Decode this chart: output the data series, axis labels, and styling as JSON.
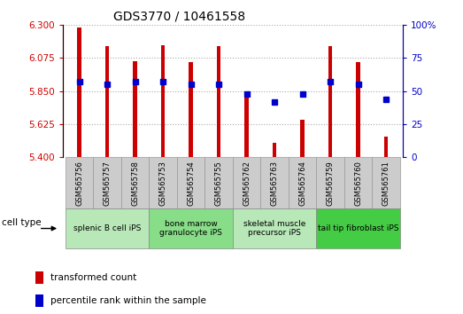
{
  "title": "GDS3770 / 10461558",
  "samples": [
    "GSM565756",
    "GSM565757",
    "GSM565758",
    "GSM565753",
    "GSM565754",
    "GSM565755",
    "GSM565762",
    "GSM565763",
    "GSM565764",
    "GSM565759",
    "GSM565760",
    "GSM565761"
  ],
  "red_values": [
    6.285,
    6.155,
    6.055,
    6.165,
    6.045,
    6.155,
    5.815,
    5.495,
    5.655,
    6.155,
    6.045,
    5.54
  ],
  "blue_values": [
    57,
    55,
    57,
    57,
    55,
    55,
    48,
    42,
    48,
    57,
    55,
    44
  ],
  "cell_type_groups": [
    {
      "label": "splenic B cell iPS",
      "start": 0,
      "end": 3,
      "color": "#b8e8b8"
    },
    {
      "label": "bone marrow\ngranulocyte iPS",
      "start": 3,
      "end": 6,
      "color": "#88dd88"
    },
    {
      "label": "skeletal muscle\nprecursor iPS",
      "start": 6,
      "end": 9,
      "color": "#b8e8b8"
    },
    {
      "label": "tail tip fibroblast iPS",
      "start": 9,
      "end": 12,
      "color": "#44cc44"
    }
  ],
  "ylim_left": [
    5.4,
    6.3
  ],
  "ylim_right": [
    0,
    100
  ],
  "yticks_left": [
    5.4,
    5.625,
    5.85,
    6.075,
    6.3
  ],
  "yticks_right": [
    0,
    25,
    50,
    75,
    100
  ],
  "left_color": "#cc0000",
  "right_color": "#0000cc",
  "bar_width": 0.15,
  "marker_size": 5,
  "label_gray": "#cccccc",
  "label_border": "#999999"
}
